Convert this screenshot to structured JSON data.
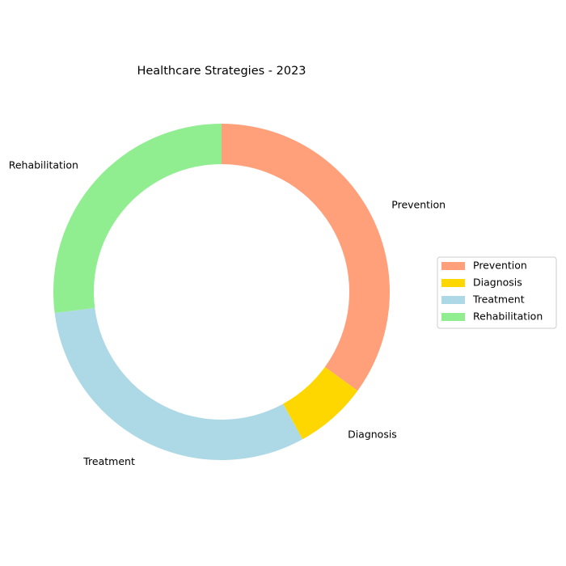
{
  "chart_data": {
    "type": "pie",
    "donut": true,
    "title": "Healthcare Strategies - 2023",
    "start_angle_deg": 90,
    "direction": "clockwise",
    "legend_position": "right",
    "slices": [
      {
        "label": "Prevention",
        "value": 35,
        "color": "#FFA07A"
      },
      {
        "label": "Diagnosis",
        "value": 7,
        "color": "#FFD700"
      },
      {
        "label": "Treatment",
        "value": 31,
        "color": "#ADD8E6"
      },
      {
        "label": "Rehabilitation",
        "value": 27,
        "color": "#90EE90"
      }
    ]
  }
}
